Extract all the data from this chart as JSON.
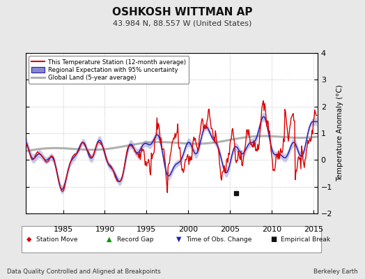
{
  "title": "OSHKOSH WITTMAN AP",
  "subtitle": "43.984 N, 88.557 W (United States)",
  "ylabel": "Temperature Anomaly (°C)",
  "xlabel_left": "Data Quality Controlled and Aligned at Breakpoints",
  "xlabel_right": "Berkeley Earth",
  "ylim": [
    -2.0,
    4.0
  ],
  "xlim": [
    1980.5,
    2015.5
  ],
  "xticks": [
    1985,
    1990,
    1995,
    2000,
    2005,
    2010,
    2015
  ],
  "yticks": [
    -2,
    -1,
    0,
    1,
    2,
    3,
    4
  ],
  "background_color": "#e8e8e8",
  "plot_bg_color": "#ffffff",
  "station_color": "#dd0000",
  "regional_color": "#2222bb",
  "regional_fill_color": "#8888cc",
  "global_color": "#b0b0b0",
  "empirical_break_year": 2005.7,
  "empirical_break_y": -1.25
}
